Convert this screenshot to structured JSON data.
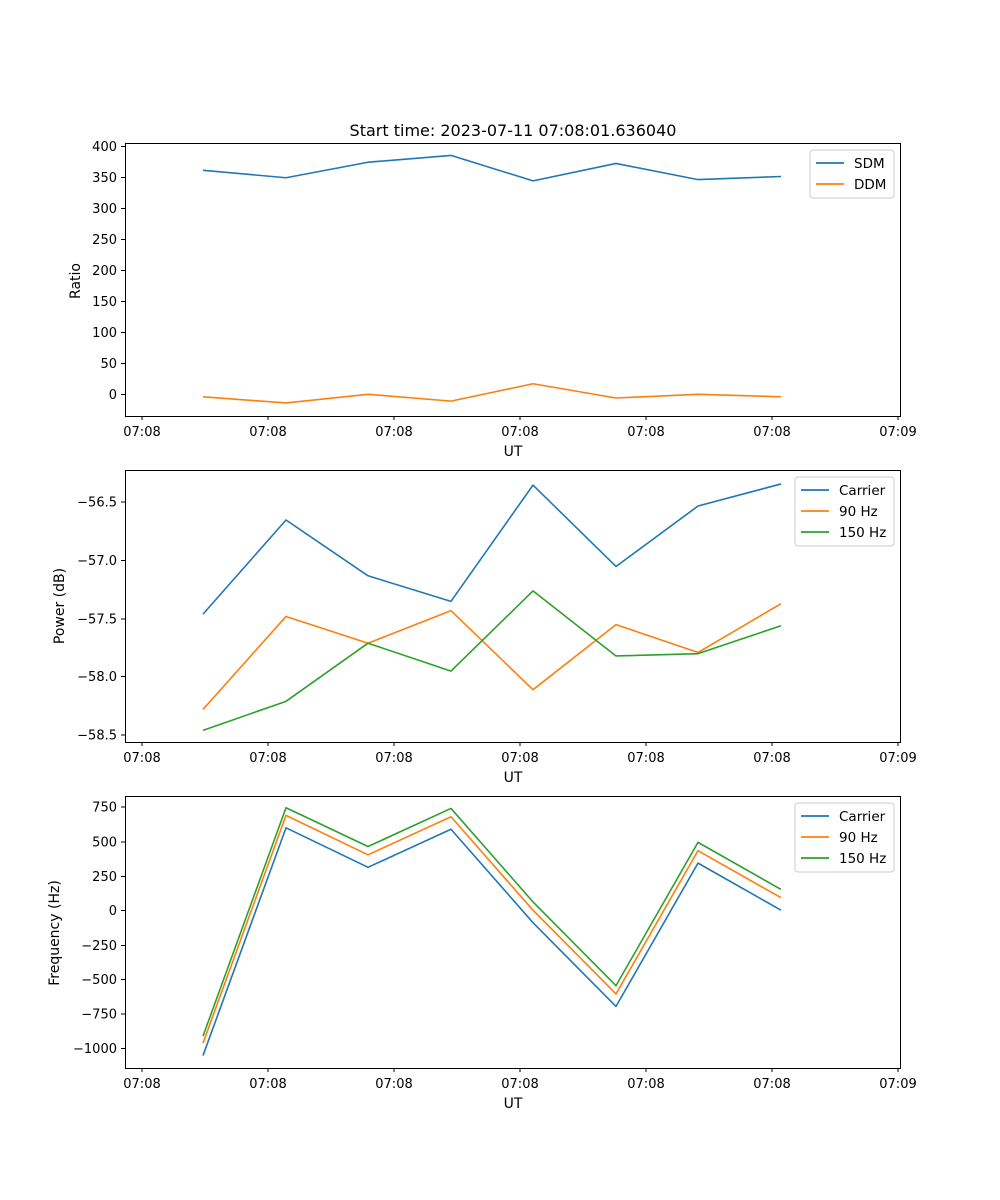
{
  "colors": {
    "blue": "#1f77b4",
    "orange": "#ff7f0e",
    "green": "#2ca02c"
  },
  "chart_data": [
    {
      "type": "line",
      "title": "Start time: 2023-07-11 07:08:01.636040",
      "xlabel": "UT",
      "ylabel": "Ratio",
      "x_ticks": [
        "07:08",
        "07:08",
        "07:08",
        "07:08",
        "07:08",
        "07:08",
        "07:09"
      ],
      "y_ticks": [
        "400",
        "350",
        "300",
        "250",
        "200",
        "150",
        "100",
        "50",
        "0"
      ],
      "ylim": [
        -35,
        405
      ],
      "legend": "upper right",
      "series": [
        {
          "name": "SDM",
          "color": "#1f77b4",
          "values": [
            361,
            349,
            374,
            385,
            344,
            372,
            346,
            351
          ]
        },
        {
          "name": "DDM",
          "color": "#ff7f0e",
          "values": [
            -4,
            -14,
            0,
            -11,
            17,
            -6,
            0,
            -4
          ]
        }
      ]
    },
    {
      "type": "line",
      "title": "",
      "xlabel": "UT",
      "ylabel": "Power (dB)",
      "x_ticks": [
        "07:08",
        "07:08",
        "07:08",
        "07:08",
        "07:08",
        "07:08",
        "07:09"
      ],
      "y_ticks": [
        "−56.5",
        "−57.0",
        "−57.5",
        "−58.0",
        "−58.5"
      ],
      "ylim": [
        -58.56,
        -56.22
      ],
      "legend": "upper right",
      "series": [
        {
          "name": "Carrier",
          "color": "#1f77b4",
          "values": [
            -57.46,
            -56.65,
            -57.13,
            -57.35,
            -56.35,
            -57.05,
            -56.53,
            -56.34
          ]
        },
        {
          "name": "90 Hz",
          "color": "#ff7f0e",
          "values": [
            -58.28,
            -57.48,
            -57.71,
            -57.43,
            -58.11,
            -57.55,
            -57.79,
            -57.37
          ]
        },
        {
          "name": "150 Hz",
          "color": "#2ca02c",
          "values": [
            -58.46,
            -58.21,
            -57.71,
            -57.95,
            -57.26,
            -57.82,
            -57.8,
            -57.56
          ]
        }
      ]
    },
    {
      "type": "line",
      "title": "",
      "xlabel": "UT",
      "ylabel": "Frequency (Hz)",
      "x_ticks": [
        "07:08",
        "07:08",
        "07:08",
        "07:08",
        "07:08",
        "07:08",
        "07:09"
      ],
      "y_ticks": [
        "750",
        "500",
        "250",
        "0",
        "−250",
        "−500",
        "−750",
        "−1000"
      ],
      "ylim": [
        -1140,
        825
      ],
      "legend": "upper right",
      "series": [
        {
          "name": "Carrier",
          "color": "#1f77b4",
          "values": [
            -1050,
            595,
            310,
            585,
            -90,
            -695,
            340,
            0
          ]
        },
        {
          "name": "90 Hz",
          "color": "#ff7f0e",
          "values": [
            -960,
            685,
            400,
            675,
            0,
            -605,
            430,
            90
          ]
        },
        {
          "name": "150 Hz",
          "color": "#2ca02c",
          "values": [
            -910,
            740,
            460,
            735,
            60,
            -545,
            490,
            150
          ]
        }
      ]
    }
  ]
}
